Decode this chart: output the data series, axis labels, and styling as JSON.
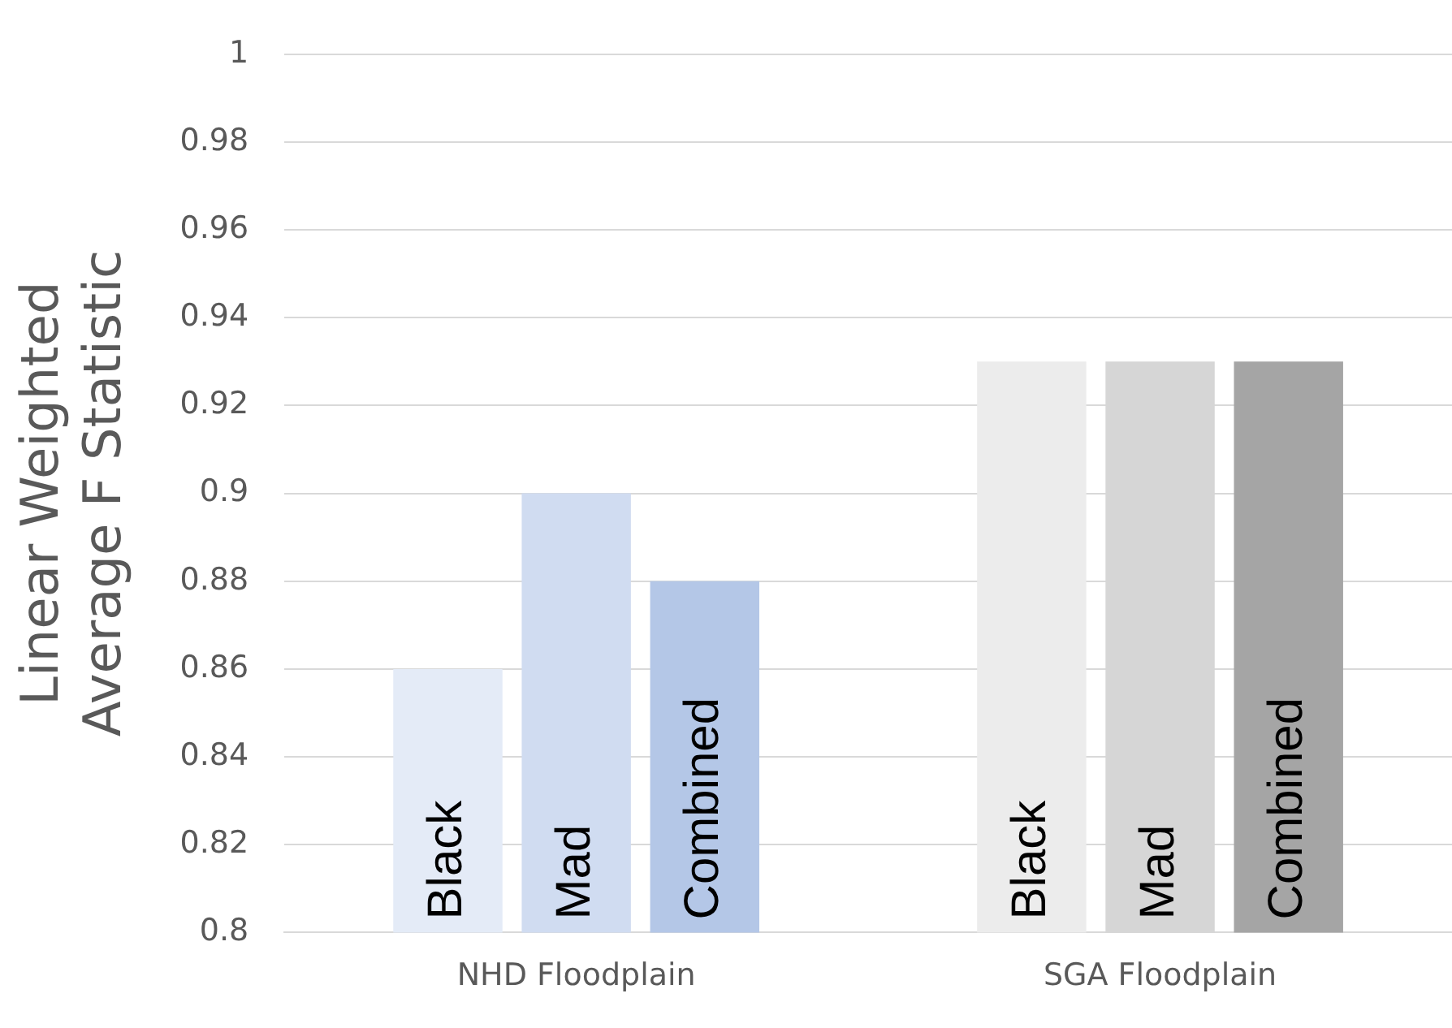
{
  "chart_data": {
    "type": "bar",
    "ylabel": "Linear Weighted Average F Statistic",
    "categories": [
      "NHD Floodplain",
      "SGA Floodplain"
    ],
    "series": [
      {
        "name": "Black",
        "colors": [
          "#e4ebf7",
          "#ececec"
        ],
        "values": [
          0.86,
          0.93
        ]
      },
      {
        "name": "Mad",
        "colors": [
          "#d0dcf1",
          "#d6d6d6"
        ],
        "values": [
          0.9,
          0.93
        ]
      },
      {
        "name": "Combined",
        "colors": [
          "#b4c7e7",
          "#a5a5a5"
        ],
        "values": [
          0.88,
          0.93
        ]
      }
    ],
    "ylim": [
      0.8,
      1
    ],
    "yticks": [
      0.8,
      0.82,
      0.84,
      0.86,
      0.88,
      0.9,
      0.92,
      0.94,
      0.96,
      0.98,
      1
    ],
    "grid": "y",
    "legend": false
  }
}
